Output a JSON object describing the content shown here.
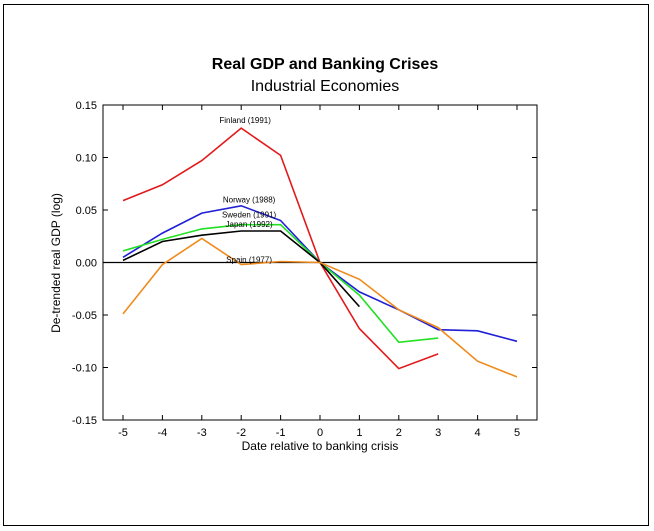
{
  "chart_data": {
    "type": "line",
    "title": "Real GDP and Banking Crises",
    "subtitle": "Industrial Economies",
    "xlabel": "Date relative to banking crisis",
    "ylabel": "De-trended real GDP (log)",
    "xlim": [
      -5,
      5
    ],
    "ylim": [
      -0.15,
      0.15
    ],
    "x_ticks": [
      -5,
      -4,
      -3,
      -2,
      -1,
      0,
      1,
      2,
      3,
      4,
      5
    ],
    "y_ticks": [
      -0.15,
      -0.1,
      -0.05,
      0.0,
      0.05,
      0.1,
      0.15
    ],
    "y_tick_labels": [
      "-0.15",
      "-0.10",
      "-0.05",
      "0.00",
      "0.05",
      "0.10",
      "0.15"
    ],
    "grid": false,
    "zero_line": true,
    "series": [
      {
        "name": "Finland (1991)",
        "color": "#e31a1c",
        "x": [
          -5,
          -4,
          -3,
          -2,
          -1,
          0,
          1,
          2,
          3
        ],
        "y": [
          0.059,
          0.074,
          0.097,
          0.128,
          0.102,
          0.0,
          -0.063,
          -0.101,
          -0.087
        ]
      },
      {
        "name": "Norway (1988)",
        "color": "#1f1fd6",
        "x": [
          -5,
          -4,
          -3,
          -2,
          -1,
          0,
          1,
          2,
          3,
          4,
          5
        ],
        "y": [
          0.005,
          0.028,
          0.047,
          0.054,
          0.04,
          0.0,
          -0.028,
          -0.045,
          -0.064,
          -0.065,
          -0.075
        ]
      },
      {
        "name": "Sweden (1991)",
        "color": "#22e022",
        "x": [
          -5,
          -4,
          -3,
          -2,
          -1,
          0,
          1,
          2,
          3
        ],
        "y": [
          0.011,
          0.022,
          0.032,
          0.036,
          0.036,
          0.0,
          -0.031,
          -0.076,
          -0.072
        ]
      },
      {
        "name": "Japan (1992)",
        "color": "#000000",
        "x": [
          -5,
          -4,
          -3,
          -2,
          -1,
          0,
          1
        ],
        "y": [
          0.002,
          0.02,
          0.026,
          0.03,
          0.03,
          0.0,
          -0.042
        ]
      },
      {
        "name": "Spain (1977)",
        "color": "#f08a1c",
        "x": [
          -5,
          -4,
          -3,
          -2,
          -1,
          0,
          1,
          2,
          3,
          4,
          5
        ],
        "y": [
          -0.049,
          -0.002,
          0.023,
          -0.002,
          0.001,
          0.0,
          -0.016,
          -0.045,
          -0.062,
          -0.094,
          -0.109
        ]
      }
    ],
    "annotations": [
      {
        "text": "Finland (1991)",
        "x": -1.9,
        "y": 0.133
      },
      {
        "text": "Norway (1988)",
        "x": -1.8,
        "y": 0.057
      },
      {
        "text": "Sweden (1991)",
        "x": -1.8,
        "y": 0.043
      },
      {
        "text": "Japan (1992)",
        "x": -1.8,
        "y": 0.034
      },
      {
        "text": "Spain (1977)",
        "x": -1.8,
        "y": 0.0
      }
    ]
  }
}
